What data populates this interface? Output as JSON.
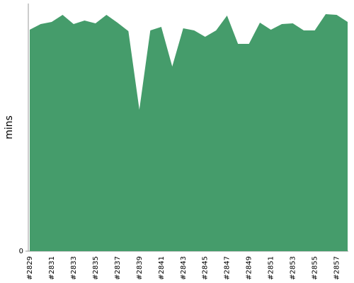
{
  "chart_data": {
    "type": "area",
    "y_label": "mins",
    "color": "#459c6b",
    "categories": [
      "#2829",
      null,
      "#2831",
      null,
      "#2833",
      null,
      "#2835",
      null,
      "#2837",
      null,
      "#2839",
      null,
      "#2841",
      null,
      "#2843",
      null,
      "#2845",
      null,
      "#2847",
      null,
      "#2849",
      null,
      "#2851",
      null,
      "#2853",
      null,
      "#2855",
      null,
      "#2857",
      null
    ],
    "values": [
      31.3,
      32.1,
      32.4,
      33.4,
      32.1,
      32.6,
      32.2,
      33.4,
      32.3,
      31.1,
      20.0,
      31.2,
      31.7,
      26.1,
      31.5,
      31.2,
      30.3,
      31.2,
      33.3,
      29.3,
      29.3,
      32.3,
      31.3,
      32.1,
      32.2,
      31.2,
      31.2,
      33.5,
      33.4,
      32.4
    ],
    "ylim": [
      0,
      35
    ],
    "yticks": [
      0
    ]
  }
}
